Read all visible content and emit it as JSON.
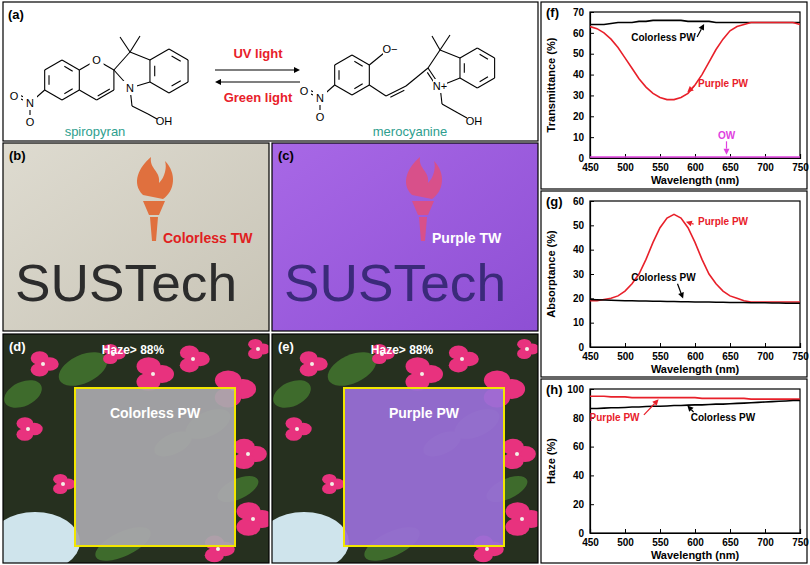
{
  "chart_data": [
    {
      "type": "line",
      "title": "(f)",
      "x_label": "Wavelength (nm)",
      "y_label": "Transmittance (%)",
      "x": [
        450,
        460,
        470,
        480,
        490,
        500,
        510,
        520,
        530,
        540,
        550,
        560,
        570,
        580,
        590,
        600,
        610,
        620,
        630,
        640,
        650,
        660,
        670,
        680,
        690,
        700,
        710,
        720,
        730,
        740,
        750
      ],
      "xlim": [
        450,
        750
      ],
      "xticks": [
        450,
        500,
        550,
        600,
        650,
        700,
        750
      ],
      "ylim": [
        0,
        70
      ],
      "yticks": [
        0,
        10,
        20,
        30,
        40,
        50,
        60,
        70
      ],
      "series": [
        {
          "name": "Colorless PW",
          "color": "#000000",
          "values": [
            64,
            64,
            64,
            64.5,
            65,
            65,
            65,
            65.5,
            65.5,
            66,
            66,
            66,
            66,
            66,
            65.5,
            65.5,
            65.5,
            65.5,
            65,
            65,
            65,
            65,
            65,
            65,
            65,
            65,
            65,
            65,
            65,
            65,
            65
          ]
        },
        {
          "name": "Purple PW",
          "color": "#e8202a",
          "values": [
            63,
            62,
            60,
            57,
            53,
            48,
            43,
            38,
            34,
            31,
            29,
            28,
            28,
            29,
            31,
            35,
            40,
            46,
            52,
            57,
            61,
            63,
            64,
            65,
            65,
            65,
            65,
            65,
            65,
            65,
            64
          ]
        },
        {
          "name": "OW",
          "color": "#e040e0",
          "values": [
            0.5,
            0.5,
            0.5,
            0.5,
            0.5,
            0.5,
            0.5,
            0.5,
            0.5,
            0.5,
            0.5,
            0.5,
            0.5,
            0.5,
            0.5,
            0.5,
            0.5,
            0.5,
            0.5,
            0.5,
            0.5,
            0.5,
            0.5,
            0.5,
            0.5,
            0.5,
            0.5,
            0.5,
            0.5,
            0.5,
            0.5
          ]
        }
      ]
    },
    {
      "type": "line",
      "title": "(g)",
      "x_label": "Wavelength (nm)",
      "y_label": "Absorptance (%)",
      "x": [
        450,
        460,
        470,
        480,
        490,
        500,
        510,
        520,
        530,
        540,
        550,
        560,
        570,
        580,
        590,
        600,
        610,
        620,
        630,
        640,
        650,
        660,
        670,
        680,
        690,
        700,
        710,
        720,
        730,
        740,
        750
      ],
      "xlim": [
        450,
        750
      ],
      "xticks": [
        450,
        500,
        550,
        600,
        650,
        700,
        750
      ],
      "ylim": [
        0,
        60
      ],
      "yticks": [
        0,
        10,
        20,
        30,
        40,
        50,
        60
      ],
      "series": [
        {
          "name": "Purple PW",
          "color": "#e8202a",
          "values": [
            19,
            19,
            19.5,
            20,
            21,
            23,
            26,
            30,
            36,
            43,
            49,
            53,
            54.5,
            53,
            49,
            43,
            36,
            30,
            26,
            23,
            21,
            20,
            19,
            18.5,
            18.5,
            18.5,
            18.5,
            18.5,
            18.5,
            18.5,
            18.5
          ]
        },
        {
          "name": "Colorless PW",
          "color": "#000000",
          "values": [
            19.5,
            19.4,
            19.3,
            19.2,
            19.1,
            19,
            19,
            18.9,
            18.9,
            18.8,
            18.8,
            18.7,
            18.7,
            18.6,
            18.6,
            18.5,
            18.5,
            18.5,
            18.4,
            18.4,
            18.3,
            18.3,
            18.3,
            18.2,
            18.2,
            18.2,
            18.1,
            18.1,
            18,
            18,
            18
          ]
        }
      ]
    },
    {
      "type": "line",
      "title": "(h)",
      "x_label": "Wavelength (nm)",
      "y_label": "Haze (%)",
      "x": [
        450,
        460,
        470,
        480,
        490,
        500,
        510,
        520,
        530,
        540,
        550,
        560,
        570,
        580,
        590,
        600,
        610,
        620,
        630,
        640,
        650,
        660,
        670,
        680,
        690,
        700,
        710,
        720,
        730,
        740,
        750
      ],
      "xlim": [
        450,
        750
      ],
      "xticks": [
        450,
        500,
        550,
        600,
        650,
        700,
        750
      ],
      "ylim": [
        0,
        100
      ],
      "yticks": [
        0,
        20,
        40,
        60,
        80,
        100
      ],
      "series": [
        {
          "name": "Purple PW",
          "color": "#e8202a",
          "values": [
            95,
            95,
            95,
            94.5,
            94.5,
            94.5,
            94,
            94,
            94,
            94,
            94,
            94,
            94,
            94,
            94,
            94,
            93.5,
            93.5,
            93.5,
            93.5,
            93.5,
            93.5,
            93.5,
            93,
            93,
            93,
            93,
            93,
            93,
            93,
            93
          ]
        },
        {
          "name": "Colorless PW",
          "color": "#000000",
          "values": [
            86.5,
            86.5,
            86.7,
            87,
            87,
            87.2,
            87.5,
            87.5,
            87.8,
            88,
            88,
            88.2,
            88.5,
            88.5,
            88.8,
            89,
            89,
            89.2,
            89.5,
            89.5,
            89.8,
            90,
            90.2,
            90.5,
            90.7,
            91,
            91.2,
            91.5,
            91.7,
            92,
            92
          ]
        }
      ]
    }
  ],
  "scheme": {
    "label": "(a)",
    "forward_label": "UV light",
    "reverse_label": "Green light",
    "molecules": [
      {
        "name": "spiropyran",
        "atoms": [
          "O",
          "N",
          "N",
          "O",
          "O",
          "OH"
        ]
      },
      {
        "name": "merocyanine",
        "atoms": [
          "O−",
          "N+",
          "N",
          "O",
          "O",
          "OH"
        ]
      }
    ]
  },
  "photos": [
    {
      "label": "(b)",
      "logo_text": "SUSTech",
      "caption": "Colorless TW"
    },
    {
      "label": "(c)",
      "logo_text": "SUSTech",
      "caption": "Purple TW"
    },
    {
      "label": "(d)",
      "haze": "Haze> 88%",
      "caption": "Colorless PW"
    },
    {
      "label": "(e)",
      "haze": "Haze> 88%",
      "caption": "Purple PW"
    }
  ]
}
